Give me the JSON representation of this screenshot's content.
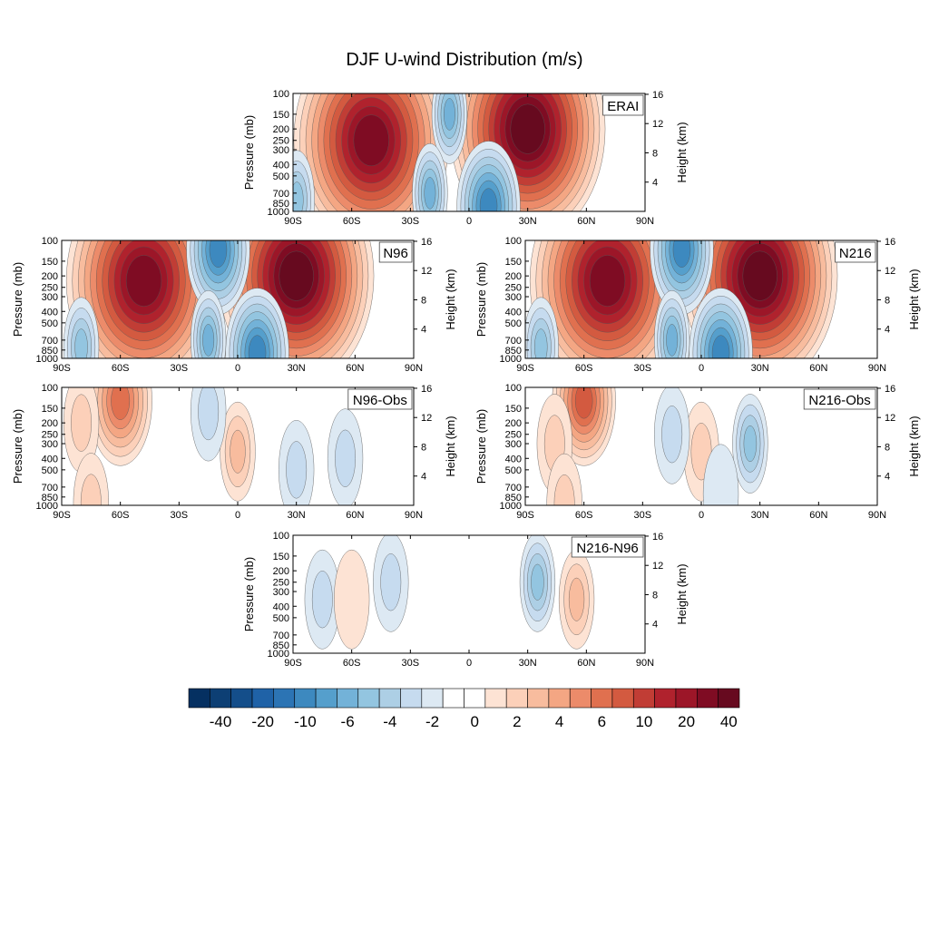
{
  "figure_title": "DJF U-wind Distribution (m/s)",
  "chart_data": {
    "type": "heatmap",
    "title": "DJF U-wind Distribution (m/s)",
    "colorbar": {
      "labels": [
        "-40",
        "-20",
        "-10",
        "-6",
        "-4",
        "-2",
        "0",
        "2",
        "4",
        "6",
        "10",
        "20",
        "40"
      ],
      "colors": [
        "#053061",
        "#0d3f74",
        "#144e8a",
        "#1f62a7",
        "#2c74b4",
        "#3d89bf",
        "#559fcc",
        "#73b2d8",
        "#93c5e0",
        "#adcfe5",
        "#c6dbef",
        "#dde9f3",
        "#ffffff",
        "#ffffff",
        "#fde3d4",
        "#fcd0b9",
        "#f8bc9e",
        "#f4a683",
        "#ec8b6a",
        "#e0704f",
        "#d35a40",
        "#c13d35",
        "#b0222d",
        "#9c1628",
        "#7f0c23",
        "#670a1f"
      ]
    },
    "panels": [
      {
        "id": "erai",
        "label": "ERAI",
        "ylabel": "Pressure (mb)",
        "ylabel_right": "Height (km)",
        "xticks": [
          "90S",
          "60S",
          "30S",
          "0",
          "30N",
          "60N",
          "90N"
        ],
        "yticks": [
          "100",
          "150",
          "200",
          "250",
          "300",
          "400",
          "500",
          "700",
          "850",
          "1000"
        ],
        "yticks_right": [
          "4",
          "8",
          "12",
          "16"
        ],
        "features": [
          {
            "lat": -50,
            "p": 250,
            "value": 32
          },
          {
            "lat": 30,
            "p": 200,
            "value": 42
          },
          {
            "lat": -10,
            "p": 150,
            "value": -5
          },
          {
            "lat": 10,
            "p": 900,
            "value": -9
          },
          {
            "lat": -20,
            "p": 700,
            "value": -4
          },
          {
            "lat": -88,
            "p": 800,
            "value": -3
          }
        ]
      },
      {
        "id": "n96",
        "label": "N96",
        "ylabel": "Pressure (mb)",
        "ylabel_right": "Height (km)",
        "xticks": [
          "90S",
          "60S",
          "30S",
          "0",
          "30N",
          "60N",
          "90N"
        ],
        "yticks": [
          "100",
          "150",
          "200",
          "250",
          "300",
          "400",
          "500",
          "700",
          "850",
          "1000"
        ],
        "yticks_right": [
          "4",
          "8",
          "12",
          "16"
        ],
        "features": [
          {
            "lat": -48,
            "p": 220,
            "value": 32
          },
          {
            "lat": 30,
            "p": 200,
            "value": 42
          },
          {
            "lat": -10,
            "p": 120,
            "value": -8
          },
          {
            "lat": 10,
            "p": 900,
            "value": -9
          },
          {
            "lat": -15,
            "p": 700,
            "value": -4
          },
          {
            "lat": -80,
            "p": 800,
            "value": -3
          }
        ]
      },
      {
        "id": "n216",
        "label": "N216",
        "ylabel": "Pressure (mb)",
        "ylabel_right": "Height (km)",
        "xticks": [
          "90S",
          "60S",
          "30S",
          "0",
          "30N",
          "60N",
          "90N"
        ],
        "yticks": [
          "100",
          "150",
          "200",
          "250",
          "300",
          "400",
          "500",
          "700",
          "850",
          "1000"
        ],
        "yticks_right": [
          "4",
          "8",
          "12",
          "16"
        ],
        "features": [
          {
            "lat": -48,
            "p": 220,
            "value": 32
          },
          {
            "lat": 30,
            "p": 200,
            "value": 44
          },
          {
            "lat": -10,
            "p": 120,
            "value": -8
          },
          {
            "lat": 10,
            "p": 900,
            "value": -9
          },
          {
            "lat": -15,
            "p": 700,
            "value": -4
          },
          {
            "lat": -82,
            "p": 800,
            "value": -3
          }
        ]
      },
      {
        "id": "n96-obs",
        "label": "N96-Obs",
        "ylabel": "Pressure (mb)",
        "ylabel_right": "Height (km)",
        "xticks": [
          "90S",
          "60S",
          "30S",
          "0",
          "30N",
          "60N",
          "90N"
        ],
        "yticks": [
          "100",
          "150",
          "200",
          "250",
          "300",
          "400",
          "500",
          "700",
          "850",
          "1000"
        ],
        "yticks_right": [
          "4",
          "8",
          "12",
          "16"
        ],
        "features": [
          {
            "lat": -60,
            "p": 130,
            "value": 7
          },
          {
            "lat": -80,
            "p": 200,
            "value": 2
          },
          {
            "lat": 0,
            "p": 350,
            "value": 3
          },
          {
            "lat": -75,
            "p": 950,
            "value": 2
          },
          {
            "lat": -15,
            "p": 160,
            "value": -2
          },
          {
            "lat": 30,
            "p": 500,
            "value": -2
          },
          {
            "lat": 55,
            "p": 400,
            "value": -2
          }
        ]
      },
      {
        "id": "n216-obs",
        "label": "N216-Obs",
        "ylabel": "Pressure (mb)",
        "ylabel_right": "Height (km)",
        "xticks": [
          "90S",
          "60S",
          "30S",
          "0",
          "30N",
          "60N",
          "90N"
        ],
        "yticks": [
          "100",
          "150",
          "200",
          "250",
          "300",
          "400",
          "500",
          "700",
          "850",
          "1000"
        ],
        "yticks_right": [
          "4",
          "8",
          "12",
          "16"
        ],
        "features": [
          {
            "lat": -60,
            "p": 130,
            "value": 8
          },
          {
            "lat": -75,
            "p": 300,
            "value": 2
          },
          {
            "lat": 0,
            "p": 350,
            "value": 2
          },
          {
            "lat": -70,
            "p": 960,
            "value": 2
          },
          {
            "lat": -15,
            "p": 250,
            "value": -2
          },
          {
            "lat": 25,
            "p": 300,
            "value": -3
          },
          {
            "lat": 10,
            "p": 800,
            "value": -1
          }
        ]
      },
      {
        "id": "n216-n96",
        "label": "N216-N96",
        "ylabel": "Pressure (mb)",
        "ylabel_right": "Height (km)",
        "xticks": [
          "90S",
          "60S",
          "30S",
          "0",
          "30N",
          "60N",
          "90N"
        ],
        "yticks": [
          "100",
          "150",
          "200",
          "250",
          "300",
          "400",
          "500",
          "700",
          "850",
          "1000"
        ],
        "yticks_right": [
          "4",
          "8",
          "12",
          "16"
        ],
        "features": [
          {
            "lat": 55,
            "p": 350,
            "value": 3
          },
          {
            "lat": -40,
            "p": 250,
            "value": -2
          },
          {
            "lat": -75,
            "p": 350,
            "value": -2
          },
          {
            "lat": 35,
            "p": 250,
            "value": -3
          },
          {
            "lat": -60,
            "p": 350,
            "value": 1
          }
        ]
      }
    ]
  }
}
